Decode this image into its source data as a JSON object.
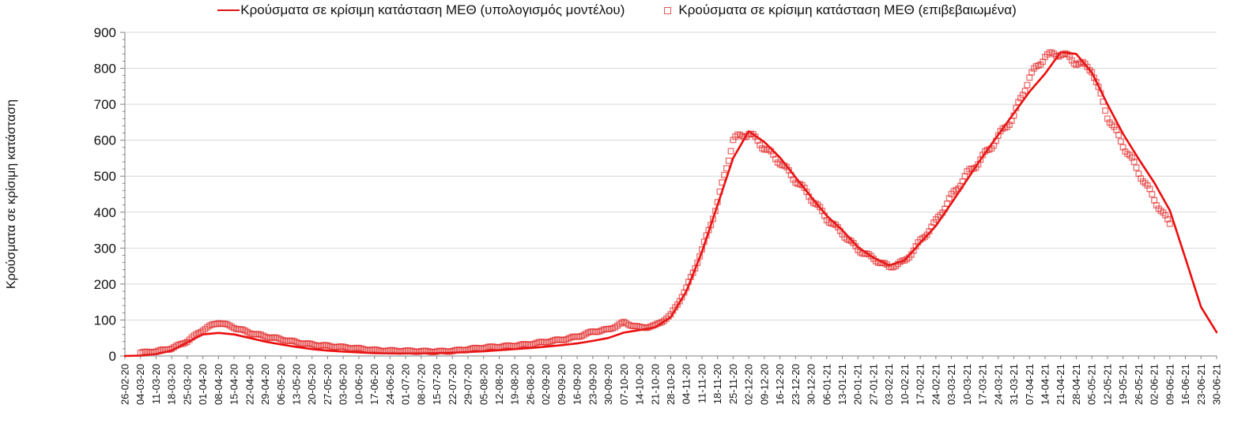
{
  "legend": {
    "model_label": "Κρούσματα σε κρίσιμη κατάσταση ΜΕΘ (υπολογισμός μοντέλου)",
    "confirmed_label": "Κρούσματα σε κρίσιμη κατάσταση ΜΕΘ (επιβεβαιωμένα)"
  },
  "y_axis": {
    "title": "Κρούσματα σε κρίσιμη κατάσταση",
    "min": 0,
    "max": 900,
    "major_step": 100,
    "minor_step": 20,
    "tick_labels": [
      "0",
      "100",
      "200",
      "300",
      "400",
      "500",
      "600",
      "700",
      "800",
      "900"
    ]
  },
  "colors": {
    "model_line": "#ed0c0c",
    "confirmed_marker": "#e02020",
    "gridline": "#d9d9d9",
    "axis_line": "#bfbfbf",
    "tick": "#808080",
    "text": "#111111"
  },
  "chart_data": {
    "type": "line",
    "x": [
      "26-02-20",
      "04-03-20",
      "11-03-20",
      "18-03-20",
      "25-03-20",
      "01-04-20",
      "08-04-20",
      "15-04-20",
      "22-04-20",
      "29-04-20",
      "06-05-20",
      "13-05-20",
      "20-05-20",
      "27-05-20",
      "03-06-20",
      "10-06-20",
      "17-06-20",
      "24-06-20",
      "01-07-20",
      "08-07-20",
      "15-07-20",
      "22-07-20",
      "29-07-20",
      "05-08-20",
      "12-08-20",
      "19-08-20",
      "26-08-20",
      "02-09-20",
      "09-09-20",
      "16-09-20",
      "23-09-20",
      "30-09-20",
      "07-10-20",
      "14-10-20",
      "21-10-20",
      "28-10-20",
      "04-11-20",
      "11-11-20",
      "18-11-20",
      "25-11-20",
      "02-12-20",
      "09-12-20",
      "16-12-20",
      "23-12-20",
      "30-12-20",
      "06-01-21",
      "13-01-21",
      "20-01-21",
      "27-01-21",
      "03-02-21",
      "10-02-21",
      "17-02-21",
      "24-02-21",
      "03-03-21",
      "10-03-21",
      "17-03-21",
      "24-03-21",
      "31-03-21",
      "07-04-21",
      "14-04-21",
      "21-04-21",
      "28-04-21",
      "05-05-21",
      "12-05-21",
      "19-05-21",
      "26-05-21",
      "02-06-21",
      "09-06-21",
      "16-06-21",
      "23-06-21",
      "30-06-21"
    ],
    "series": [
      {
        "name": "Κρούσματα σε κρίσιμη κατάσταση ΜΕΘ (υπολογισμός μοντέλου)",
        "style": "line",
        "color": "#ed0c0c",
        "values": [
          0,
          1,
          5,
          15,
          38,
          60,
          64,
          60,
          50,
          40,
          32,
          25,
          19,
          15,
          12,
          10,
          8,
          7,
          7,
          7,
          8,
          9,
          11,
          13,
          16,
          19,
          22,
          26,
          30,
          35,
          42,
          50,
          65,
          72,
          80,
          108,
          180,
          290,
          420,
          550,
          625,
          595,
          552,
          497,
          442,
          390,
          350,
          303,
          273,
          252,
          266,
          315,
          362,
          425,
          490,
          555,
          615,
          675,
          735,
          785,
          845,
          840,
          788,
          700,
          618,
          548,
          482,
          405,
          272,
          136,
          66
        ]
      },
      {
        "name": "Κρούσματα σε κρίσιμη κατάσταση ΜΕΘ (επιβεβαιωμένα)",
        "style": "square-markers",
        "color": "#e02020",
        "values": [
          null,
          8,
          12,
          22,
          42,
          72,
          92,
          80,
          66,
          54,
          45,
          38,
          33,
          28,
          23,
          20,
          17,
          15,
          13,
          12,
          13,
          15,
          18,
          22,
          26,
          30,
          33,
          38,
          45,
          55,
          68,
          72,
          92,
          80,
          85,
          112,
          185,
          295,
          430,
          600,
          615,
          580,
          545,
          490,
          435,
          382,
          345,
          298,
          268,
          245,
          265,
          322,
          372,
          440,
          508,
          558,
          608,
          662,
          775,
          840,
          843,
          812,
          795,
          672,
          590,
          508,
          432,
          368,
          null,
          null,
          null
        ]
      }
    ],
    "ylim": [
      0,
      900
    ],
    "grid": "horizontal",
    "legend_position": "top",
    "x_tick_interval_days": 7
  }
}
